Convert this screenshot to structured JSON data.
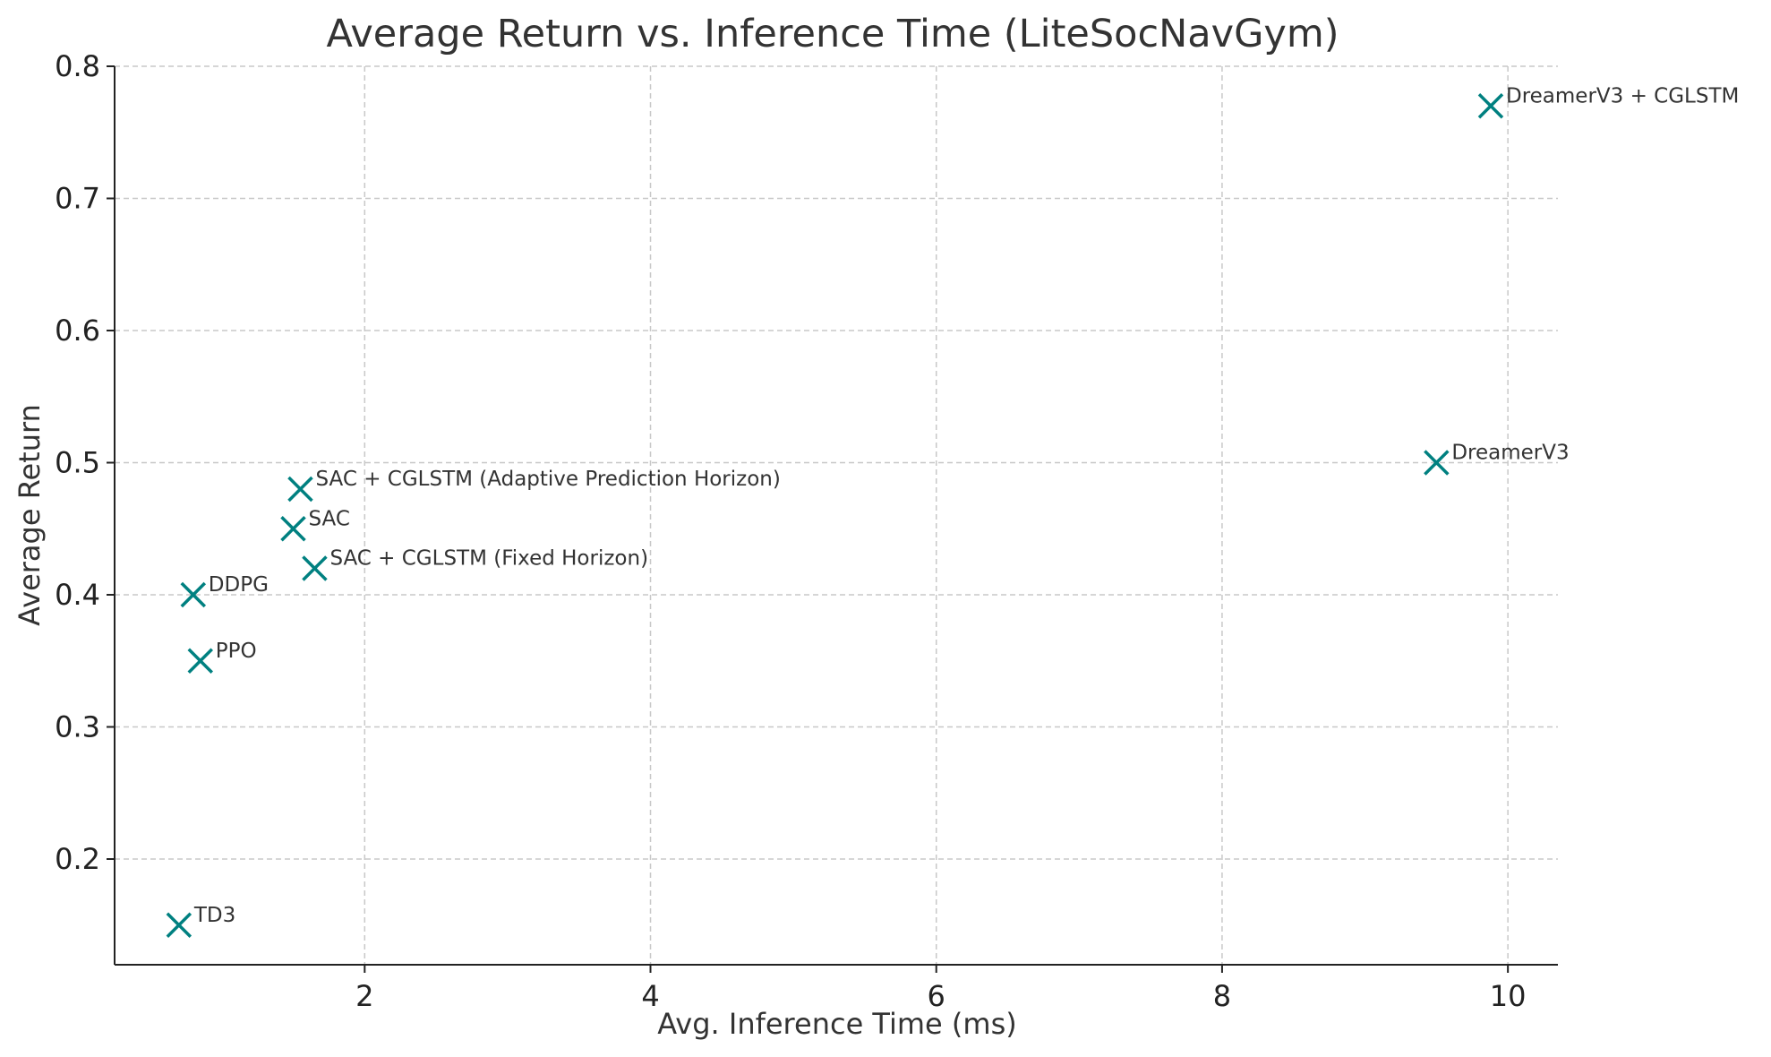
{
  "chart_data": {
    "type": "scatter",
    "title": "Average Return vs. Inference Time (LiteSocNavGym)",
    "xlabel": "Avg. Inference Time (ms)",
    "ylabel": "Average Return",
    "xlim": [
      0.25,
      10.35
    ],
    "ylim": [
      0.12,
      0.8
    ],
    "xticks": [
      2,
      4,
      6,
      8,
      10
    ],
    "yticks": [
      0.2,
      0.3,
      0.4,
      0.5,
      0.6,
      0.7,
      0.8
    ],
    "ytick_labels": [
      "0.2",
      "0.3",
      "0.4",
      "0.5",
      "0.6",
      "0.7",
      "0.8"
    ],
    "grid": true,
    "marker": "x",
    "color": "#008080",
    "points": [
      {
        "label": "TD3",
        "x": 0.7,
        "y": 0.15
      },
      {
        "label": "DDPG",
        "x": 0.8,
        "y": 0.4
      },
      {
        "label": "PPO",
        "x": 0.85,
        "y": 0.35
      },
      {
        "label": "SAC",
        "x": 1.5,
        "y": 0.45
      },
      {
        "label": "SAC + CGLSTM (Adaptive Prediction Horizon)",
        "x": 1.55,
        "y": 0.48
      },
      {
        "label": "SAC + CGLSTM (Fixed Horizon)",
        "x": 1.65,
        "y": 0.42
      },
      {
        "label": "DreamerV3",
        "x": 9.5,
        "y": 0.5
      },
      {
        "label": "DreamerV3 + CGLSTM",
        "x": 9.88,
        "y": 0.77
      }
    ]
  }
}
